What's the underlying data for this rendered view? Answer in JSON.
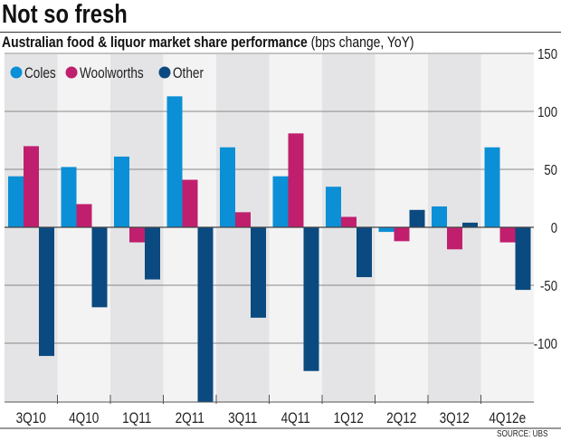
{
  "title": "Not so fresh",
  "subtitle_bold": "Australian food & liquor market share performance",
  "subtitle_units": "(bps change, YoY)",
  "source": "SOURCE: UBS",
  "chart_data": {
    "type": "bar",
    "title": "Australian food & liquor market share performance",
    "ylabel": "bps change, YoY",
    "categories": [
      "3Q10",
      "4Q10",
      "1Q11",
      "2Q11",
      "3Q11",
      "4Q11",
      "1Q12",
      "2Q12",
      "3Q12",
      "4Q12e"
    ],
    "series": [
      {
        "name": "Coles",
        "color": "#0b8fd6",
        "values": [
          44,
          52,
          61,
          113,
          69,
          44,
          35,
          -4,
          18,
          69
        ]
      },
      {
        "name": "Woolworths",
        "color": "#c01f6e",
        "values": [
          70,
          20,
          -13,
          41,
          13,
          81,
          9,
          -12,
          -19,
          -13
        ]
      },
      {
        "name": "Other",
        "color": "#0b4a80",
        "values": [
          -111,
          -69,
          -45,
          -151,
          -78,
          -124,
          -43,
          15,
          4,
          -54
        ]
      }
    ],
    "ylim": [
      -151,
      150
    ],
    "yticks": [
      150,
      100,
      50,
      0,
      -50,
      -100
    ],
    "ytick_labels": [
      "150",
      "100",
      "50",
      "0",
      "-50",
      "-100"
    ],
    "y_axis_side": "right",
    "grid": true,
    "legend": "top-left",
    "band_colors": [
      "#e4e4e6",
      "#f3f3f3"
    ]
  }
}
